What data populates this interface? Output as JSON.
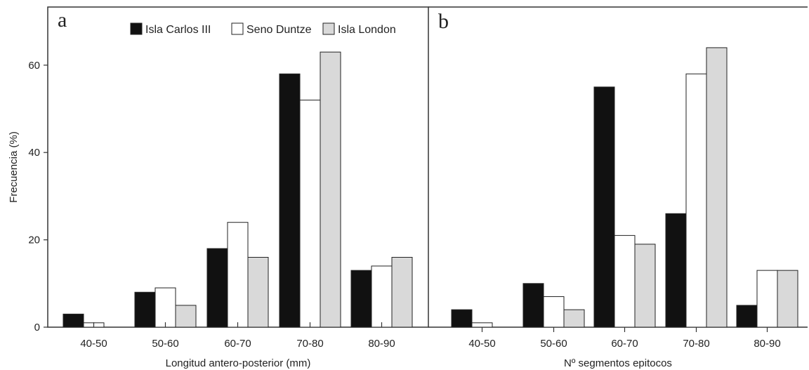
{
  "figure": {
    "y_axis_label": "Frecuencia (%)",
    "legend": [
      {
        "label": "Isla Carlos III",
        "color": "#111111"
      },
      {
        "label": "Seno Duntze",
        "color": "#ffffff"
      },
      {
        "label": "Isla London",
        "color": "#d9d9d9"
      }
    ]
  },
  "chart_data": [
    {
      "type": "bar",
      "panel_letter": "a",
      "xlabel": "Longitud antero-posterior (mm)",
      "ylabel": "Frecuencia (%)",
      "categories": [
        "40-50",
        "50-60",
        "60-70",
        "70-80",
        "80-90"
      ],
      "ylim": [
        0,
        72
      ],
      "yticks": [
        0,
        20,
        40,
        60
      ],
      "grid": false,
      "legend_position": "top-right",
      "series": [
        {
          "name": "Isla Carlos III",
          "values": [
            3,
            8,
            18,
            58,
            13
          ]
        },
        {
          "name": "Seno Duntze",
          "values": [
            1,
            9,
            24,
            52,
            14
          ]
        },
        {
          "name": "Isla London",
          "values": [
            0,
            5,
            16,
            63,
            16
          ]
        }
      ]
    },
    {
      "type": "bar",
      "panel_letter": "b",
      "xlabel": "Nº segmentos epitocos",
      "ylabel": "Frecuencia (%)",
      "categories": [
        "40-50",
        "50-60",
        "60-70",
        "70-80",
        "80-90"
      ],
      "ylim": [
        0,
        72
      ],
      "yticks": [
        0,
        20,
        40,
        60
      ],
      "grid": false,
      "legend_position": "none",
      "series": [
        {
          "name": "Isla Carlos III",
          "values": [
            4,
            10,
            55,
            26,
            5
          ]
        },
        {
          "name": "Seno Duntze",
          "values": [
            1,
            7,
            21,
            58,
            13
          ]
        },
        {
          "name": "Isla London",
          "values": [
            0,
            4,
            19,
            64,
            13
          ]
        }
      ]
    }
  ]
}
